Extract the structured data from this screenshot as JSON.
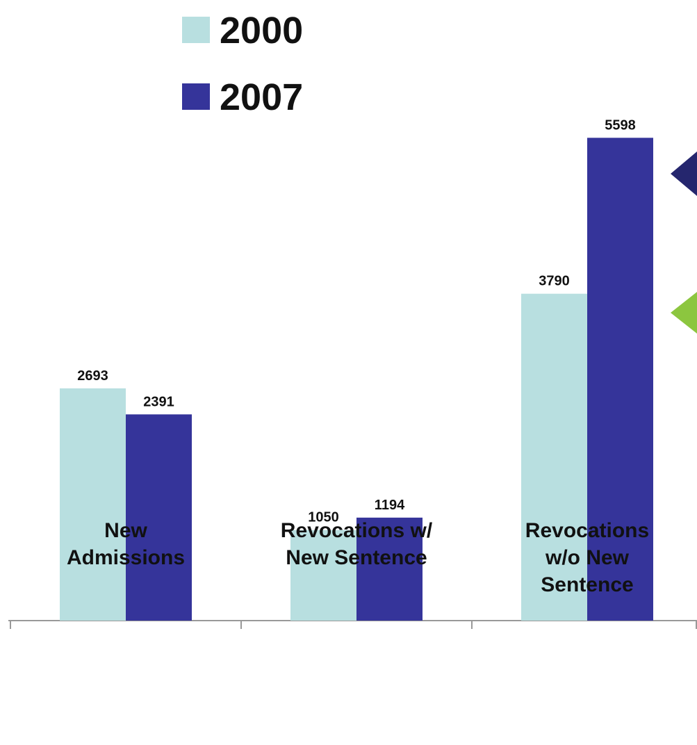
{
  "chart_data": {
    "type": "bar",
    "categories": [
      "New\nAdmissions",
      "Revocations w/\nNew Sentence",
      "Revocations\nw/o New\nSentence"
    ],
    "series": [
      {
        "name": "2000",
        "color": "#b8dfe0",
        "values": [
          2693,
          1050,
          3790
        ]
      },
      {
        "name": "2007",
        "color": "#35349a",
        "values": [
          2391,
          1194,
          5598
        ]
      }
    ],
    "ylim": [
      0,
      6000
    ]
  }
}
